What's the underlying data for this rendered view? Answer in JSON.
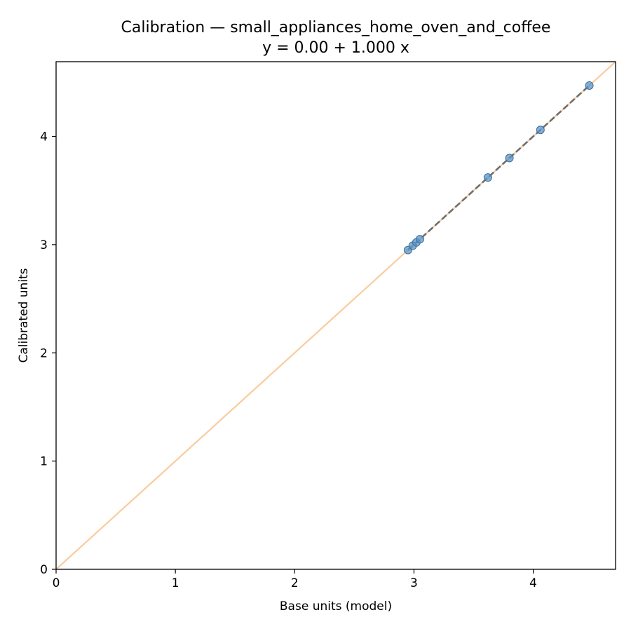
{
  "chart_data": {
    "type": "scatter",
    "title": "Calibration — small_appliances_home_oven_and_coffee",
    "subtitle": "y = 0.00 + 1.000 x",
    "xlabel": "Base units (model)",
    "ylabel": "Calibrated units",
    "xlim": [
      0,
      4.69
    ],
    "ylim": [
      0,
      4.69
    ],
    "xticks": [
      0,
      1,
      2,
      3,
      4
    ],
    "yticks": [
      0,
      1,
      2,
      3,
      4
    ],
    "grid": false,
    "points": [
      {
        "x": 2.95,
        "y": 2.95
      },
      {
        "x": 2.99,
        "y": 2.99
      },
      {
        "x": 3.02,
        "y": 3.02
      },
      {
        "x": 3.05,
        "y": 3.05
      },
      {
        "x": 3.62,
        "y": 3.62
      },
      {
        "x": 3.8,
        "y": 3.8
      },
      {
        "x": 4.06,
        "y": 4.06
      },
      {
        "x": 4.47,
        "y": 4.47
      }
    ],
    "identity_line": {
      "x": [
        0,
        4.69
      ],
      "y": [
        0,
        4.69
      ],
      "color": "#f9cc9e"
    },
    "fit_line": {
      "intercept": 0.0,
      "slope": 1.0,
      "x_range": [
        2.95,
        4.47
      ],
      "color": "#6e6e6e",
      "style": "dashed"
    },
    "point_color": "#5b93c4",
    "point_edge_color": "#3a6f9e"
  }
}
